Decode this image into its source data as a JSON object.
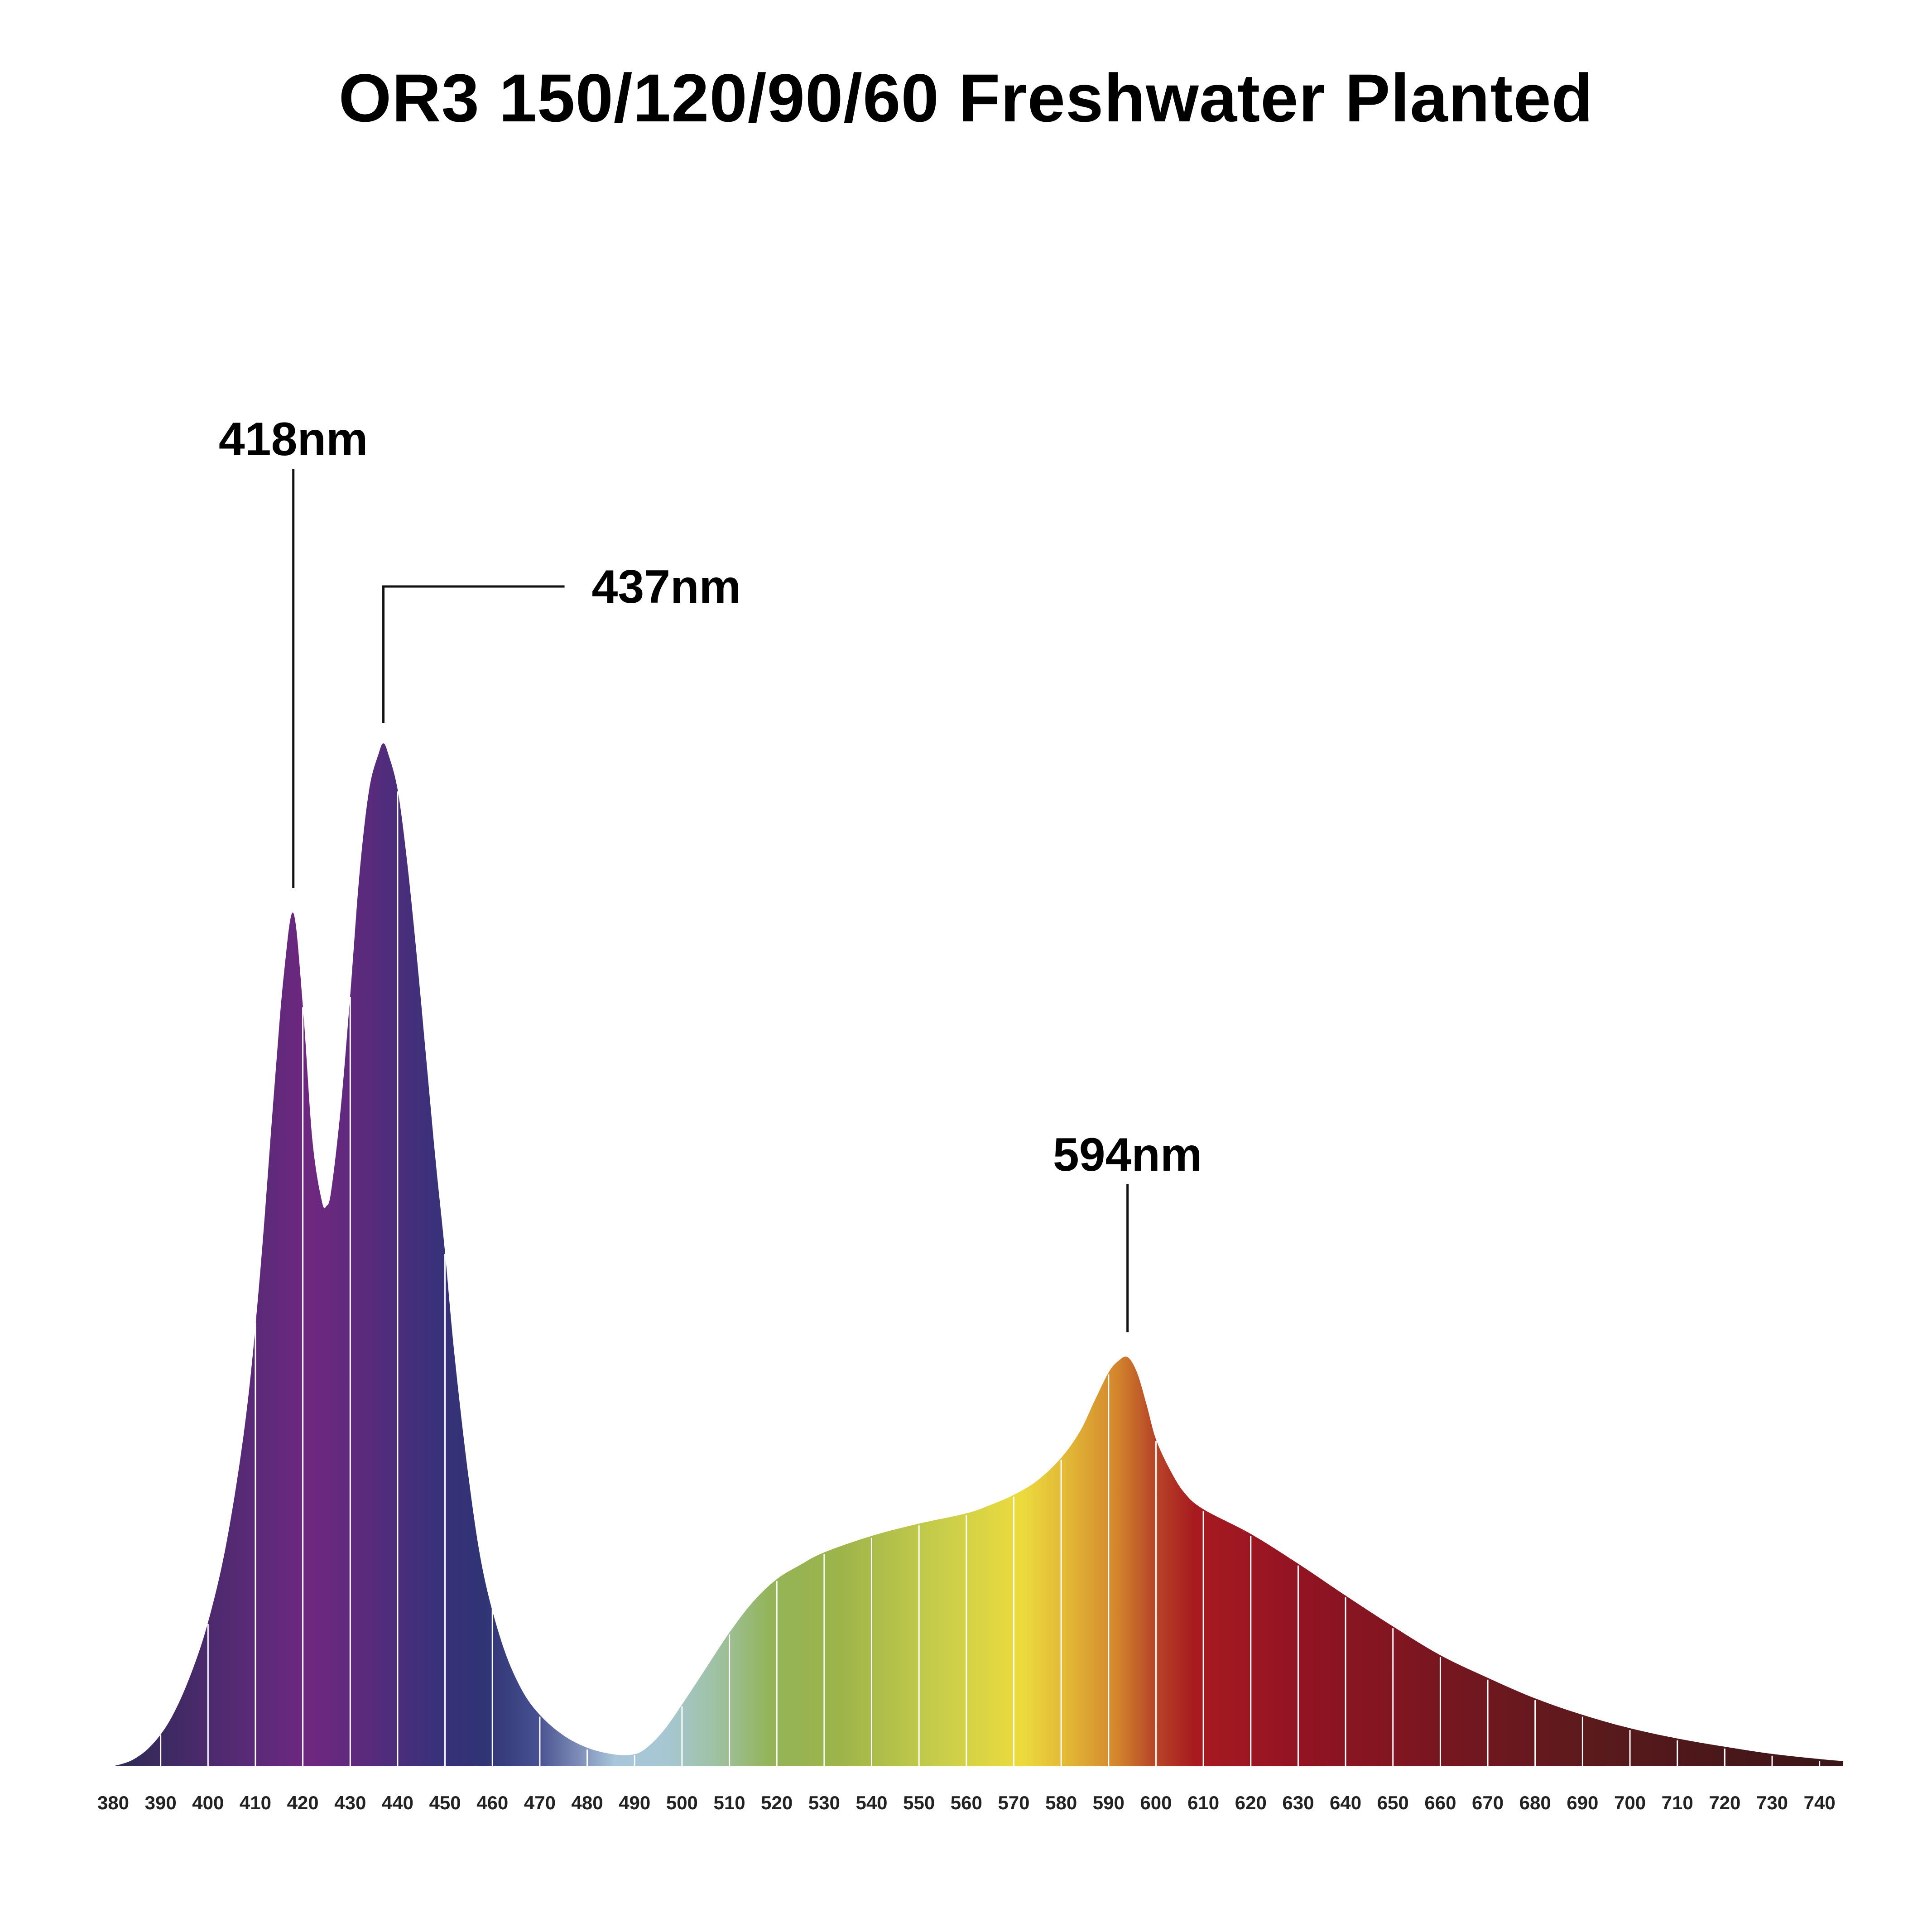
{
  "chart_data": {
    "type": "area",
    "title": "OR3 150/120/90/60 Freshwater Planted",
    "xlabel": "",
    "ylabel": "",
    "xlim": [
      380,
      745
    ],
    "ylim": [
      0,
      1.0
    ],
    "grid": false,
    "x_ticks": [
      380,
      390,
      400,
      410,
      420,
      430,
      440,
      450,
      460,
      470,
      480,
      490,
      500,
      510,
      520,
      530,
      540,
      550,
      560,
      570,
      580,
      590,
      600,
      610,
      620,
      630,
      640,
      650,
      660,
      670,
      680,
      690,
      700,
      710,
      720,
      730,
      740
    ],
    "x": [
      380,
      384,
      388,
      392,
      396,
      400,
      404,
      408,
      411,
      414,
      416,
      418,
      420,
      422,
      424,
      425,
      426,
      428,
      430,
      432,
      434,
      436,
      437,
      438,
      440,
      442,
      444,
      446,
      448,
      450,
      452,
      455,
      458,
      462,
      466,
      470,
      475,
      480,
      485,
      489,
      492,
      496,
      500,
      505,
      510,
      515,
      520,
      525,
      530,
      540,
      550,
      560,
      565,
      570,
      575,
      580,
      584,
      587,
      590,
      592,
      594,
      596,
      598,
      600,
      603,
      606,
      610,
      620,
      630,
      640,
      650,
      660,
      670,
      680,
      690,
      700,
      710,
      720,
      730,
      740,
      745
    ],
    "y": [
      0.0,
      0.006,
      0.02,
      0.045,
      0.085,
      0.14,
      0.22,
      0.34,
      0.48,
      0.66,
      0.77,
      0.83,
      0.74,
      0.61,
      0.55,
      0.545,
      0.56,
      0.64,
      0.75,
      0.87,
      0.95,
      0.985,
      0.995,
      0.985,
      0.95,
      0.88,
      0.79,
      0.69,
      0.59,
      0.5,
      0.4,
      0.28,
      0.19,
      0.12,
      0.076,
      0.05,
      0.03,
      0.018,
      0.012,
      0.011,
      0.016,
      0.034,
      0.06,
      0.095,
      0.13,
      0.16,
      0.182,
      0.196,
      0.208,
      0.224,
      0.236,
      0.246,
      0.254,
      0.264,
      0.278,
      0.3,
      0.326,
      0.355,
      0.383,
      0.394,
      0.398,
      0.383,
      0.352,
      0.318,
      0.288,
      0.266,
      0.25,
      0.226,
      0.197,
      0.166,
      0.136,
      0.108,
      0.086,
      0.066,
      0.05,
      0.037,
      0.027,
      0.019,
      0.012,
      0.007,
      0.005
    ],
    "annotations": [
      {
        "text": "418nm",
        "x": 418
      },
      {
        "text": "437nm",
        "x": 437
      },
      {
        "text": "594nm",
        "x": 594
      }
    ]
  }
}
